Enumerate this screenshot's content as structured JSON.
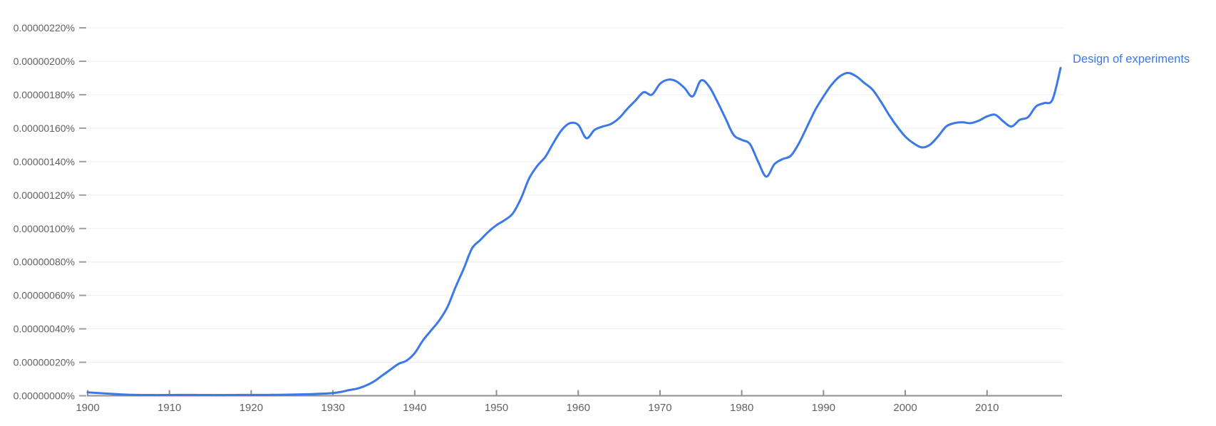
{
  "chart": {
    "series_label": "Design of experiments"
  },
  "colors": {
    "line": "#3b78e8",
    "label": "#3b78e8",
    "tick_text": "#616161",
    "grid": "#eeeeee",
    "axis": "#8f8f8f",
    "y_dash": "#9e9e9e",
    "background": "#ffffff"
  },
  "chart_data": {
    "type": "line",
    "title": "",
    "xlabel": "",
    "ylabel": "",
    "grid": true,
    "legend_position": "end-of-line-right",
    "xlim": [
      1900,
      2019
    ],
    "unit_note": "values are ngram frequency in percent; stored as percent x 1e-8 (e.g. 196 = 0.00000196%)",
    "ylim_in_1e-8_percent": [
      0,
      230
    ],
    "x_tick_years": [
      1900,
      1910,
      1920,
      1930,
      1940,
      1950,
      1960,
      1970,
      1980,
      1990,
      2000,
      2010
    ],
    "y_ticks_in_1e-8_percent": [
      0,
      20,
      40,
      60,
      80,
      100,
      120,
      140,
      160,
      180,
      200,
      220
    ],
    "y_tick_labels": [
      "0.00000000%",
      "0.00000020%",
      "0.00000040%",
      "0.00000060%",
      "0.00000080%",
      "0.00000100%",
      "0.00000120%",
      "0.00000140%",
      "0.00000160%",
      "0.00000180%",
      "0.00000200%",
      "0.00000220%"
    ],
    "series": [
      {
        "name": "Design of experiments",
        "color": "#3b78e8",
        "x_start": 1900,
        "x_step": 1,
        "values_in_1e-8_percent": [
          2.0,
          1.7,
          1.4,
          1.1,
          0.8,
          0.6,
          0.5,
          0.45,
          0.4,
          0.4,
          0.45,
          0.5,
          0.5,
          0.5,
          0.45,
          0.4,
          0.4,
          0.4,
          0.45,
          0.5,
          0.5,
          0.5,
          0.5,
          0.55,
          0.6,
          0.7,
          0.8,
          0.9,
          1.1,
          1.3,
          1.6,
          2.3,
          3.4,
          4.3,
          6.0,
          8.5,
          12.0,
          15.5,
          19.0,
          21.0,
          25.5,
          33.0,
          39.0,
          45.0,
          53.0,
          65.0,
          76.0,
          88.0,
          93.0,
          98.0,
          102.0,
          105.0,
          109.0,
          118.0,
          130.0,
          137.5,
          143.0,
          151.5,
          159.0,
          163.0,
          162.0,
          154.0,
          159.0,
          161.0,
          162.5,
          166.0,
          171.5,
          176.5,
          181.5,
          180.0,
          186.5,
          189.0,
          188.0,
          184.0,
          179.0,
          188.5,
          185.0,
          176.0,
          166.0,
          156.0,
          153.0,
          150.5,
          140.0,
          131.0,
          138.5,
          141.5,
          143.5,
          151.0,
          161.0,
          171.0,
          179.0,
          186.0,
          191.0,
          193.0,
          191.0,
          187.0,
          183.0,
          176.0,
          168.0,
          161.0,
          155.0,
          151.0,
          148.5,
          150.0,
          155.0,
          161.0,
          163.0,
          163.5,
          163.0,
          164.5,
          167.0,
          168.0,
          164.0,
          161.0,
          165.0,
          166.5,
          173.0,
          175.0,
          177.0,
          196.0
        ]
      }
    ]
  }
}
